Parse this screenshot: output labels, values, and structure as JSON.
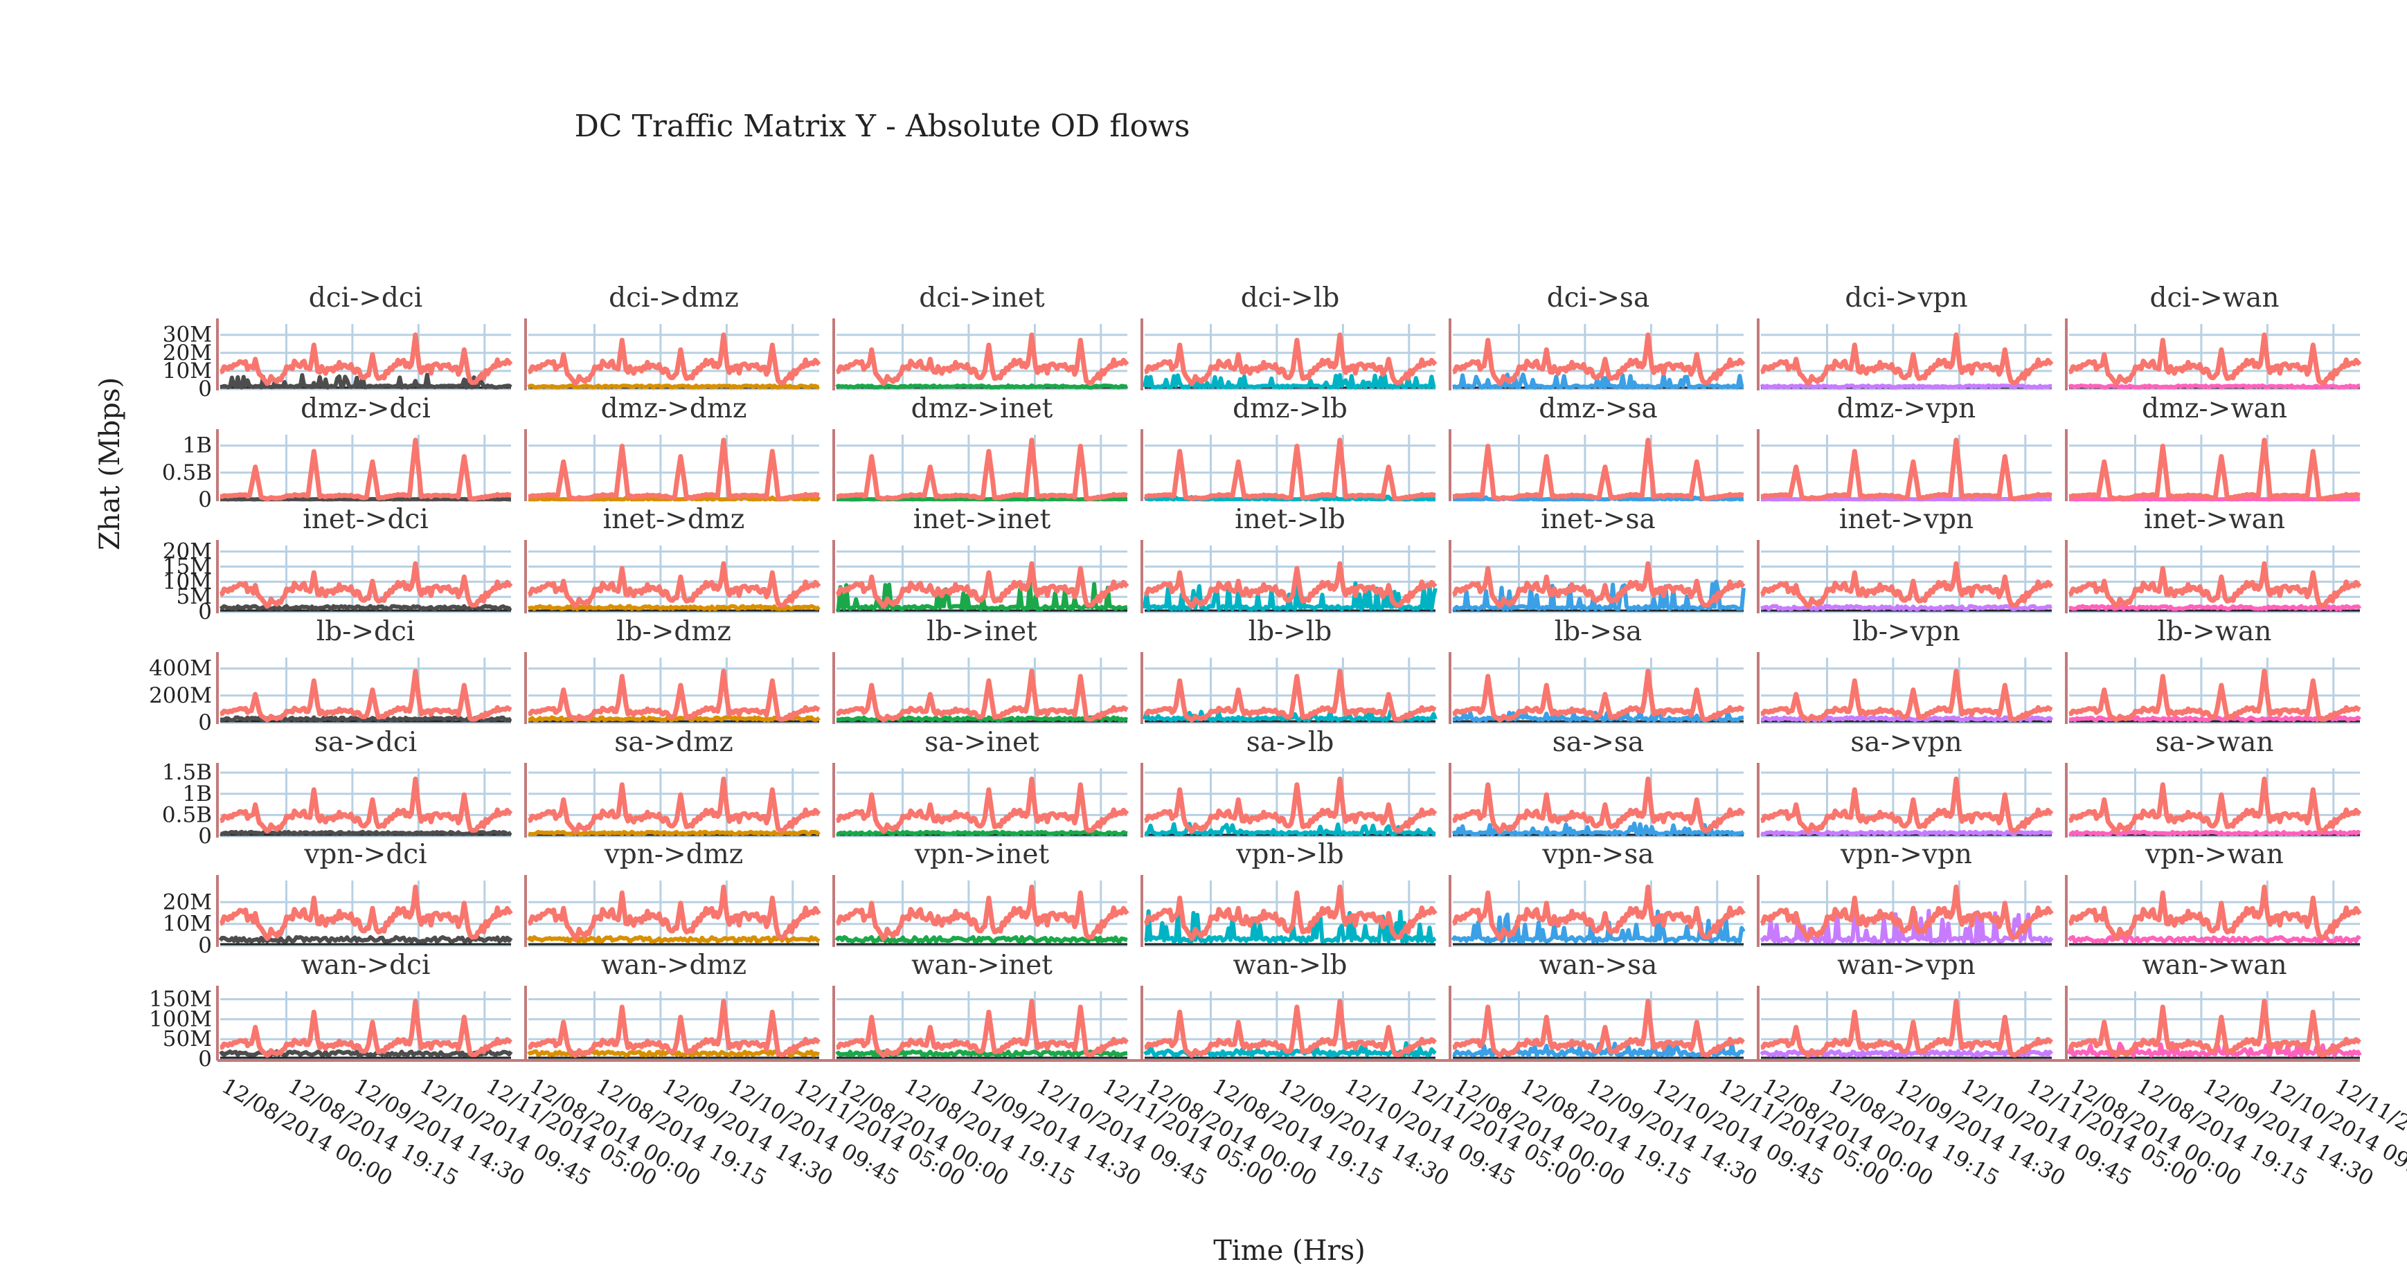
{
  "chart_data": {
    "type": "line",
    "title": "DC Traffic Matrix  Y - Absolute OD  flows",
    "xlabel": "Time (Hrs)",
    "ylabel": "Zhat (Mbps)",
    "grid": true,
    "legend": "none",
    "x_range": [
      "12/08/2014 00:00",
      "12/11/2014 05:00"
    ],
    "x_tick_labels": [
      "12/08/2014 00:00",
      "12/08/2014 19:15",
      "12/09/2014 14:30",
      "12/10/2014 09:45",
      "12/11/2014 05:00"
    ],
    "series_colors": {
      "total": "#f8766d",
      "dci": "#4d4d4d",
      "dmz": "#d89000",
      "inet": "#1aa84a",
      "lb": "#00b3c4",
      "sa": "#3ba0e6",
      "vpn": "#c77cff",
      "wan": "#ff62bc"
    },
    "rows": [
      {
        "source": "dci",
        "ylim": [
          0,
          36000000
        ],
        "y_ticks": [
          0,
          10000000,
          20000000,
          30000000
        ],
        "y_tick_labels": [
          "0",
          "10M",
          "20M",
          "30M"
        ],
        "total_base": 13000000,
        "total_spike": 30000000,
        "component_level": 1500000,
        "component_peak": 8000000
      },
      {
        "source": "dmz",
        "ylim": [
          0,
          1200000000
        ],
        "y_ticks": [
          0,
          500000000,
          1000000000
        ],
        "y_tick_labels": [
          "0",
          "0.5B",
          "1B"
        ],
        "total_base": 80000000,
        "total_spike": 1100000000,
        "component_level": 10000000,
        "component_peak": 60000000
      },
      {
        "source": "inet",
        "ylim": [
          0,
          22000000
        ],
        "y_ticks": [
          0,
          5000000,
          10000000,
          15000000,
          20000000
        ],
        "y_tick_labels": [
          "0",
          "5M",
          "10M",
          "15M",
          "20M"
        ],
        "total_base": 8000000,
        "total_spike": 16000000,
        "component_level": 1500000,
        "component_peak": 10000000
      },
      {
        "source": "lb",
        "ylim": [
          0,
          480000000
        ],
        "y_ticks": [
          0,
          200000000,
          400000000
        ],
        "y_tick_labels": [
          "0",
          "200M",
          "400M"
        ],
        "total_base": 90000000,
        "total_spike": 380000000,
        "component_level": 30000000,
        "component_peak": 90000000
      },
      {
        "source": "sa",
        "ylim": [
          0,
          1600000000
        ],
        "y_ticks": [
          0,
          500000000,
          1000000000,
          1500000000
        ],
        "y_tick_labels": [
          "0",
          "0.5B",
          "1B",
          "1.5B"
        ],
        "total_base": 500000000,
        "total_spike": 1350000000,
        "component_level": 80000000,
        "component_peak": 300000000
      },
      {
        "source": "vpn",
        "ylim": [
          0,
          30000000
        ],
        "y_ticks": [
          0,
          10000000,
          20000000
        ],
        "y_tick_labels": [
          "0",
          "10M",
          "20M"
        ],
        "total_base": 14000000,
        "total_spike": 27000000,
        "component_level": 3000000,
        "component_peak": 16000000
      },
      {
        "source": "wan",
        "ylim": [
          0,
          170000000
        ],
        "y_ticks": [
          0,
          50000000,
          100000000,
          150000000
        ],
        "y_tick_labels": [
          "0",
          "50M",
          "100M",
          "150M"
        ],
        "total_base": 40000000,
        "total_spike": 145000000,
        "component_level": 15000000,
        "component_peak": 40000000
      }
    ],
    "columns": [
      "dci",
      "dmz",
      "inet",
      "lb",
      "sa",
      "vpn",
      "wan"
    ],
    "panels": [
      "dci->dci",
      "dci->dmz",
      "dci->inet",
      "dci->lb",
      "dci->sa",
      "dci->vpn",
      "dci->wan",
      "dmz->dci",
      "dmz->dmz",
      "dmz->inet",
      "dmz->lb",
      "dmz->sa",
      "dmz->vpn",
      "dmz->wan",
      "inet->dci",
      "inet->dmz",
      "inet->inet",
      "inet->lb",
      "inet->sa",
      "inet->vpn",
      "inet->wan",
      "lb->dci",
      "lb->dmz",
      "lb->inet",
      "lb->lb",
      "lb->sa",
      "lb->vpn",
      "lb->wan",
      "sa->dci",
      "sa->dmz",
      "sa->inet",
      "sa->lb",
      "sa->sa",
      "sa->vpn",
      "sa->wan",
      "vpn->dci",
      "vpn->dmz",
      "vpn->inet",
      "vpn->lb",
      "vpn->sa",
      "vpn->vpn",
      "vpn->wan",
      "wan->dci",
      "wan->dmz",
      "wan->inet",
      "wan->lb",
      "wan->sa",
      "wan->vpn",
      "wan->wan"
    ]
  }
}
